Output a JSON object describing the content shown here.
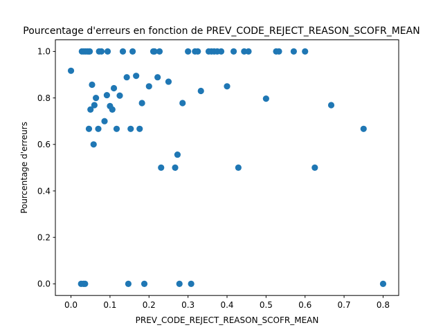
{
  "chart_data": {
    "type": "scatter",
    "title": "Pourcentage d'erreurs en fonction de PREV_CODE_REJECT_REASON_SCOFR_MEAN",
    "xlabel": "PREV_CODE_REJECT_REASON_SCOFR_MEAN",
    "ylabel": "Pourcentage d'erreurs",
    "xlim": [
      -0.04,
      0.84
    ],
    "ylim": [
      -0.05,
      1.05
    ],
    "xticks": [
      "0.0",
      "0.1",
      "0.2",
      "0.3",
      "0.4",
      "0.5",
      "0.6",
      "0.7",
      "0.8"
    ],
    "yticks": [
      "0.0",
      "0.2",
      "0.4",
      "0.6",
      "0.8",
      "1.0"
    ],
    "color": "#1f77b4",
    "grid": false,
    "points": [
      [
        0.0,
        0.917
      ],
      [
        0.026,
        0.0
      ],
      [
        0.032,
        0.0
      ],
      [
        0.036,
        0.0
      ],
      [
        0.028,
        1.0
      ],
      [
        0.033,
        1.0
      ],
      [
        0.038,
        1.0
      ],
      [
        0.043,
        1.0
      ],
      [
        0.048,
        1.0
      ],
      [
        0.046,
        0.667
      ],
      [
        0.05,
        0.75
      ],
      [
        0.054,
        0.857
      ],
      [
        0.058,
        0.6
      ],
      [
        0.06,
        0.769
      ],
      [
        0.064,
        0.8
      ],
      [
        0.07,
        0.667
      ],
      [
        0.072,
        1.0
      ],
      [
        0.078,
        1.0
      ],
      [
        0.086,
        0.7
      ],
      [
        0.092,
        0.812
      ],
      [
        0.094,
        1.0
      ],
      [
        0.1,
        0.765
      ],
      [
        0.106,
        0.75
      ],
      [
        0.11,
        0.842
      ],
      [
        0.117,
        0.667
      ],
      [
        0.125,
        0.81
      ],
      [
        0.133,
        1.0
      ],
      [
        0.143,
        0.889
      ],
      [
        0.147,
        0.0
      ],
      [
        0.153,
        0.667
      ],
      [
        0.158,
        1.0
      ],
      [
        0.167,
        0.895
      ],
      [
        0.176,
        0.667
      ],
      [
        0.182,
        0.778
      ],
      [
        0.188,
        0.0
      ],
      [
        0.2,
        0.85
      ],
      [
        0.211,
        1.0
      ],
      [
        0.214,
        1.0
      ],
      [
        0.222,
        0.889
      ],
      [
        0.227,
        1.0
      ],
      [
        0.231,
        0.5
      ],
      [
        0.25,
        0.87
      ],
      [
        0.267,
        0.5
      ],
      [
        0.273,
        0.556
      ],
      [
        0.278,
        0.0
      ],
      [
        0.286,
        0.778
      ],
      [
        0.3,
        1.0
      ],
      [
        0.308,
        0.0
      ],
      [
        0.318,
        1.0
      ],
      [
        0.325,
        1.0
      ],
      [
        0.333,
        0.83
      ],
      [
        0.353,
        1.0
      ],
      [
        0.36,
        1.0
      ],
      [
        0.367,
        1.0
      ],
      [
        0.375,
        1.0
      ],
      [
        0.385,
        1.0
      ],
      [
        0.4,
        0.85
      ],
      [
        0.417,
        1.0
      ],
      [
        0.429,
        0.5
      ],
      [
        0.444,
        1.0
      ],
      [
        0.455,
        1.0
      ],
      [
        0.5,
        0.797
      ],
      [
        0.526,
        1.0
      ],
      [
        0.533,
        1.0
      ],
      [
        0.571,
        1.0
      ],
      [
        0.6,
        1.0
      ],
      [
        0.625,
        0.5
      ],
      [
        0.667,
        0.769
      ],
      [
        0.75,
        0.667
      ],
      [
        0.8,
        0.0
      ]
    ]
  }
}
